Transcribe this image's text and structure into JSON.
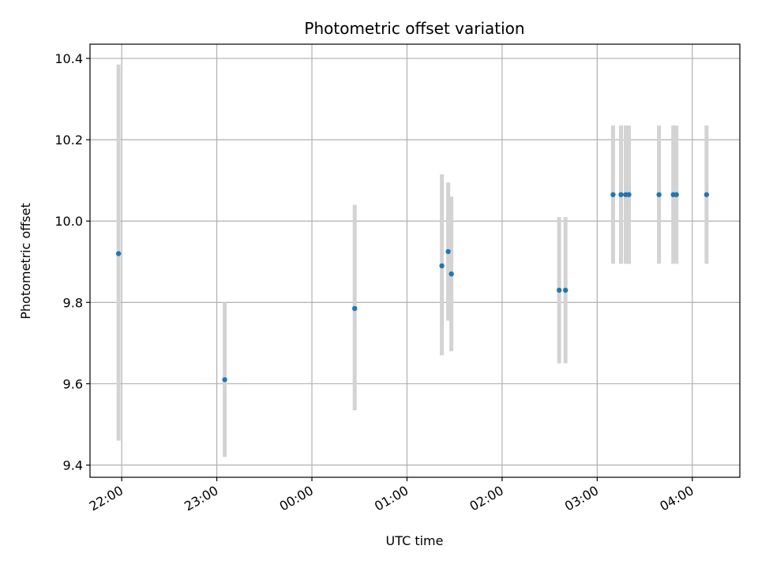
{
  "chart_data": {
    "type": "scatter",
    "title": "Photometric offset variation",
    "xlabel": "UTC time",
    "ylabel": "Photometric offset",
    "x_axis_kind": "time",
    "xlim": [
      "21:40",
      "04:30"
    ],
    "ylim": [
      9.37,
      10.435
    ],
    "grid": true,
    "x_ticks": [
      "22:00",
      "23:00",
      "00:00",
      "01:00",
      "02:00",
      "03:00",
      "04:00"
    ],
    "y_ticks": [
      9.4,
      9.6,
      9.8,
      10.0,
      10.2,
      10.4
    ],
    "colors": {
      "point": "#1f77b4",
      "errorbar": "#d3d3d3",
      "grid": "#b0b0b0",
      "axes": "#000000"
    },
    "series": [
      {
        "points": [
          {
            "x": "21:58",
            "y": 9.92,
            "low": 9.46,
            "high": 10.385
          },
          {
            "x": "23:05",
            "y": 9.61,
            "low": 9.42,
            "high": 9.8
          },
          {
            "x": "00:27",
            "y": 9.785,
            "low": 9.535,
            "high": 10.04
          },
          {
            "x": "01:22",
            "y": 9.89,
            "low": 9.67,
            "high": 10.115
          },
          {
            "x": "01:26",
            "y": 9.925,
            "low": 9.755,
            "high": 10.095
          },
          {
            "x": "01:28",
            "y": 9.87,
            "low": 9.68,
            "high": 10.06
          },
          {
            "x": "02:36",
            "y": 9.83,
            "low": 9.65,
            "high": 10.01
          },
          {
            "x": "02:40",
            "y": 9.83,
            "low": 9.65,
            "high": 10.01
          },
          {
            "x": "03:10",
            "y": 10.065,
            "low": 9.895,
            "high": 10.235
          },
          {
            "x": "03:15",
            "y": 10.065,
            "low": 9.895,
            "high": 10.235
          },
          {
            "x": "03:18",
            "y": 10.065,
            "low": 9.895,
            "high": 10.235
          },
          {
            "x": "03:20",
            "y": 10.065,
            "low": 9.895,
            "high": 10.235
          },
          {
            "x": "03:39",
            "y": 10.065,
            "low": 9.895,
            "high": 10.235
          },
          {
            "x": "03:48",
            "y": 10.065,
            "low": 9.895,
            "high": 10.235
          },
          {
            "x": "03:50",
            "y": 10.065,
            "low": 9.895,
            "high": 10.235
          },
          {
            "x": "04:09",
            "y": 10.065,
            "low": 9.895,
            "high": 10.235
          }
        ]
      }
    ]
  }
}
